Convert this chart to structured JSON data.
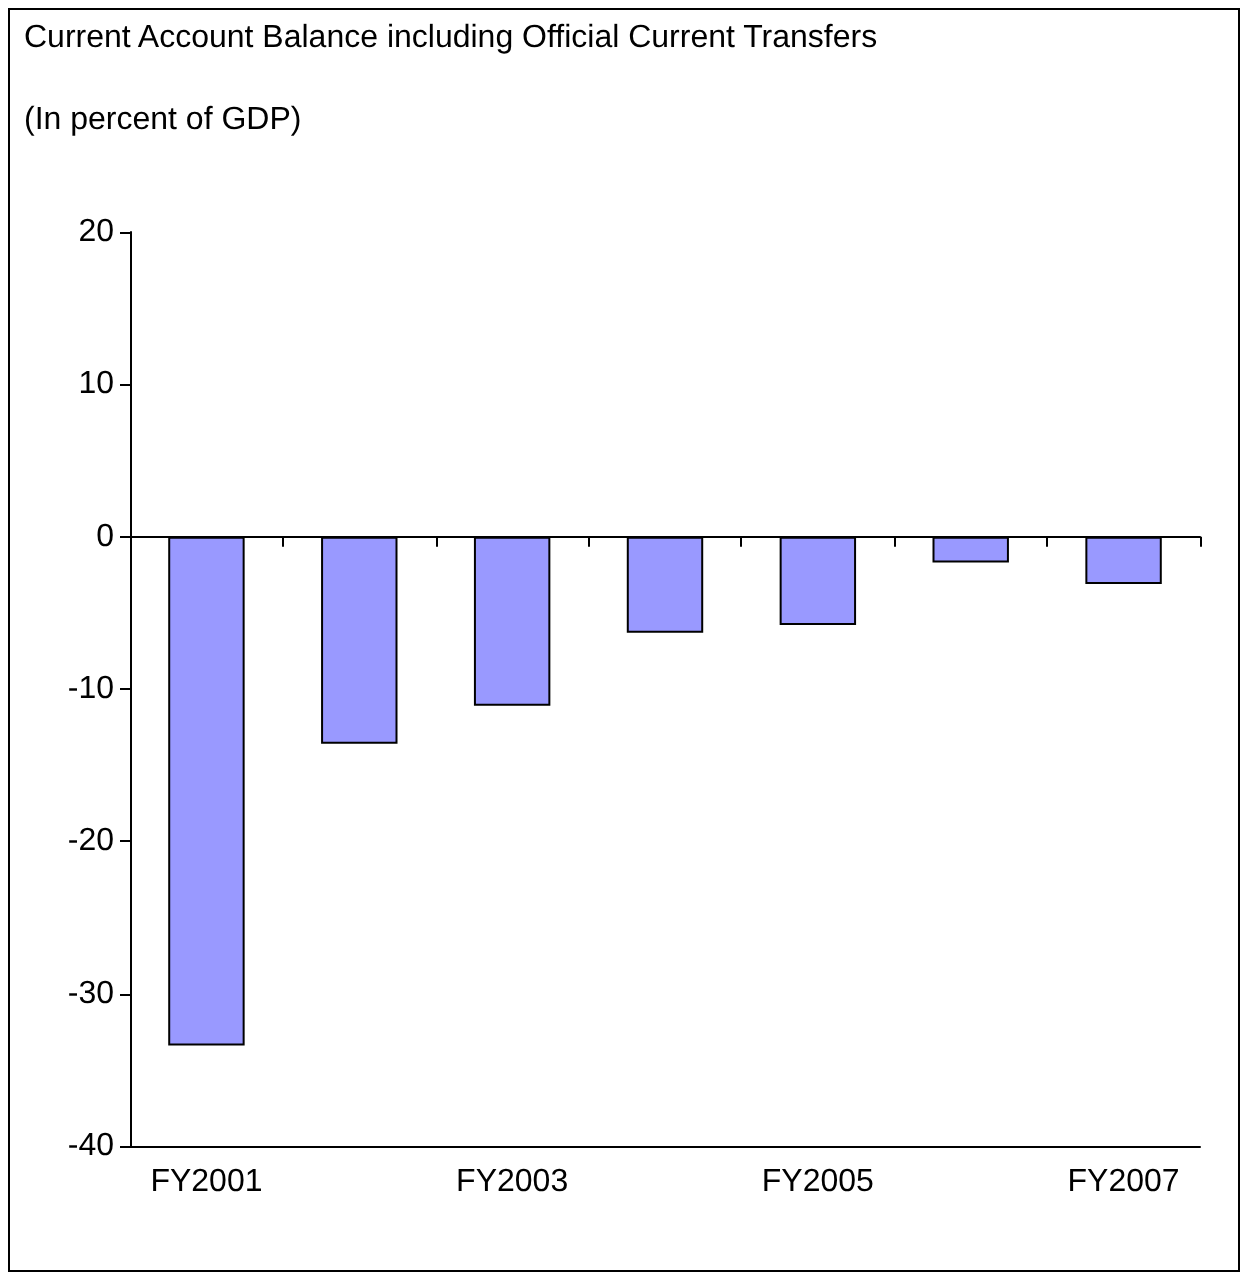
{
  "chart_data": {
    "type": "bar",
    "title": "Current Account Balance including Official Current Transfers",
    "subtitle": "(In percent of GDP)",
    "categories": [
      "FY2001",
      null,
      "FY2003",
      null,
      "FY2005",
      null,
      "FY2007"
    ],
    "values": [
      -33.4,
      -13.6,
      -11.1,
      -6.3,
      -5.8,
      -1.7,
      -3.1
    ],
    "color": "#9999ff",
    "ylim": [
      -40,
      20
    ],
    "yticks": [
      -40,
      -30,
      -20,
      -10,
      0,
      10,
      20
    ]
  }
}
